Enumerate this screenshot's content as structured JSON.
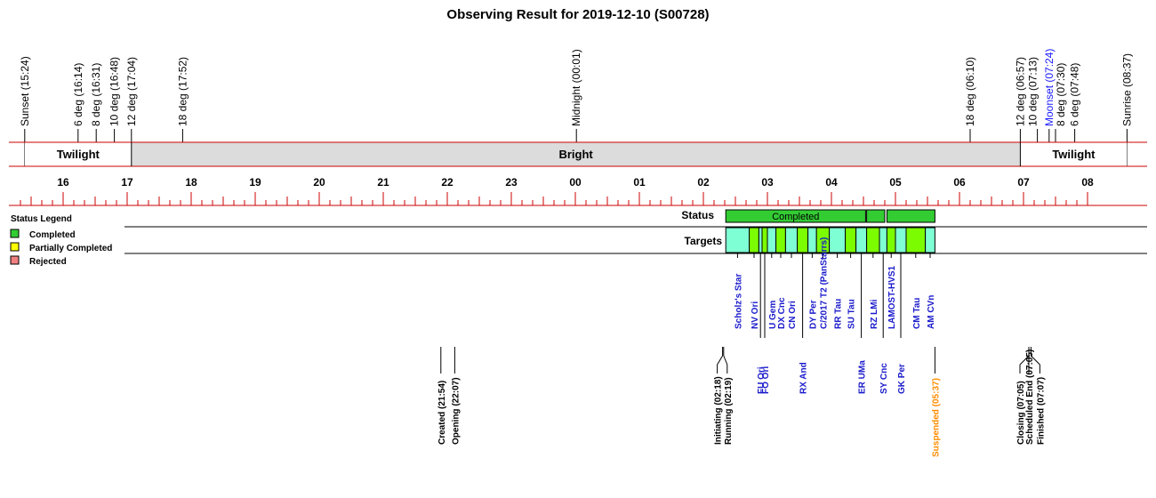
{
  "chart_data": {
    "type": "timeline",
    "title": "Observing Result for 2019-12-10 (S00728)",
    "axis": {
      "start_time": "15:24",
      "end_time": "08:37",
      "hour_ticks": [
        "16",
        "17",
        "18",
        "19",
        "20",
        "21",
        "22",
        "23",
        "00",
        "01",
        "02",
        "03",
        "04",
        "05",
        "06",
        "07",
        "08"
      ]
    },
    "sky_events": [
      {
        "label": "Sunset (15:24)",
        "time": "15:24"
      },
      {
        "label": "6 deg (16:14)",
        "time": "16:14"
      },
      {
        "label": "8 deg (16:31)",
        "time": "16:31"
      },
      {
        "label": "10 deg (16:48)",
        "time": "16:48"
      },
      {
        "label": "12 deg (17:04)",
        "time": "17:04"
      },
      {
        "label": "18 deg (17:52)",
        "time": "17:52"
      },
      {
        "label": "Midnight (00:01)",
        "time": "00:01"
      },
      {
        "label": "18 deg (06:10)",
        "time": "06:10"
      },
      {
        "label": "12 deg (06:57)",
        "time": "06:57"
      },
      {
        "label": "10 deg (07:13)",
        "time": "07:13"
      },
      {
        "label": "Moonset (07:24)",
        "time": "07:24",
        "moon": true
      },
      {
        "label": "8 deg (07:30)",
        "time": "07:30"
      },
      {
        "label": "6 deg (07:48)",
        "time": "07:48"
      },
      {
        "label": "Sunrise (08:37)",
        "time": "08:37"
      }
    ],
    "bands": [
      {
        "label": "Twilight",
        "start": "15:24",
        "end": "17:04",
        "fill": "#ffffff"
      },
      {
        "label": "Bright",
        "start": "17:04",
        "end": "06:57",
        "fill": "#dcdcdc"
      },
      {
        "label": "Twilight",
        "start": "06:57",
        "end": "08:37",
        "fill": "#ffffff"
      }
    ],
    "rows": {
      "status": "Status",
      "targets": "Targets"
    },
    "status_segments": [
      {
        "label": "Completed",
        "start": "02:21",
        "end": "04:32",
        "color": "#33cc33"
      },
      {
        "label": "",
        "start": "04:33",
        "end": "04:50",
        "color": "#33cc33"
      },
      {
        "label": "",
        "start": "04:52",
        "end": "05:37",
        "color": "#33cc33"
      }
    ],
    "targets": [
      {
        "name": "Scholz's Star",
        "start": "02:21",
        "end": "02:43",
        "color": "#7fffd4",
        "row": "upper"
      },
      {
        "name": "NV Ori",
        "start": "02:43",
        "end": "02:52",
        "color": "#7cfc00",
        "row": "upper"
      },
      {
        "name": "FU Ori",
        "start": "02:52",
        "end": "02:55",
        "color": "#7fffd4",
        "row": "lower"
      },
      {
        "name": "FO Ori",
        "start": "02:55",
        "end": "03:00",
        "color": "#7cfc00",
        "row": "lower"
      },
      {
        "name": "U Gem",
        "start": "03:00",
        "end": "03:08",
        "color": "#7fffd4",
        "row": "upper"
      },
      {
        "name": "DX Cnc",
        "start": "03:08",
        "end": "03:17",
        "color": "#7cfc00",
        "row": "upper"
      },
      {
        "name": "CN Ori",
        "start": "03:17",
        "end": "03:28",
        "color": "#7fffd4",
        "row": "upper"
      },
      {
        "name": "RX And",
        "start": "03:28",
        "end": "03:38",
        "color": "#7cfc00",
        "row": "lower"
      },
      {
        "name": "DY Per",
        "start": "03:38",
        "end": "03:46",
        "color": "#7fffd4",
        "row": "upper"
      },
      {
        "name": "C/2017 T2 (PanStarrs)",
        "start": "03:46",
        "end": "03:58",
        "color": "#7cfc00",
        "row": "upper"
      },
      {
        "name": "RR Tau",
        "start": "03:58",
        "end": "04:13",
        "color": "#7fffd4",
        "row": "upper"
      },
      {
        "name": "SU Tau",
        "start": "04:13",
        "end": "04:23",
        "color": "#7cfc00",
        "row": "upper"
      },
      {
        "name": "ER UMa",
        "start": "04:23",
        "end": "04:33",
        "color": "#7fffd4",
        "row": "lower"
      },
      {
        "name": "RZ LMi",
        "start": "04:33",
        "end": "04:45",
        "color": "#7cfc00",
        "row": "upper"
      },
      {
        "name": "SY Cnc",
        "start": "04:45",
        "end": "04:52",
        "color": "#7fffd4",
        "row": "lower"
      },
      {
        "name": "LAMOST-HVS1",
        "start": "04:52",
        "end": "05:00",
        "color": "#7cfc00",
        "row": "upper"
      },
      {
        "name": "GK Per",
        "start": "05:00",
        "end": "05:10",
        "color": "#7fffd4",
        "row": "lower"
      },
      {
        "name": "CM Tau",
        "start": "05:10",
        "end": "05:28",
        "color": "#7cfc00",
        "row": "upper"
      },
      {
        "name": "AM CVn",
        "start": "05:28",
        "end": "05:37",
        "color": "#7fffd4",
        "row": "upper"
      }
    ],
    "milestones": [
      {
        "label": "Created (21:54)",
        "time": "21:54"
      },
      {
        "label": "Opening (22:07)",
        "time": "22:07"
      },
      {
        "label": "Initiating (02:18)",
        "time": "02:18"
      },
      {
        "label": "Running (02:19)",
        "time": "02:19"
      },
      {
        "label": "Suspended (05:37)",
        "time": "05:37",
        "warn": true
      },
      {
        "label": "Closing (07:05)",
        "time": "07:05"
      },
      {
        "label": "Scheduled End (07:05)",
        "time": "07:05"
      },
      {
        "label": "Finished (07:07)",
        "time": "07:07"
      }
    ],
    "legend": {
      "title": "Status Legend",
      "items": [
        {
          "label": "Completed",
          "color": "#33cc33"
        },
        {
          "label": "Partially Completed",
          "color": "#ffff00"
        },
        {
          "label": "Rejected",
          "color": "#f08080"
        }
      ]
    },
    "colors": {
      "axis_line": "#cc0000"
    }
  }
}
